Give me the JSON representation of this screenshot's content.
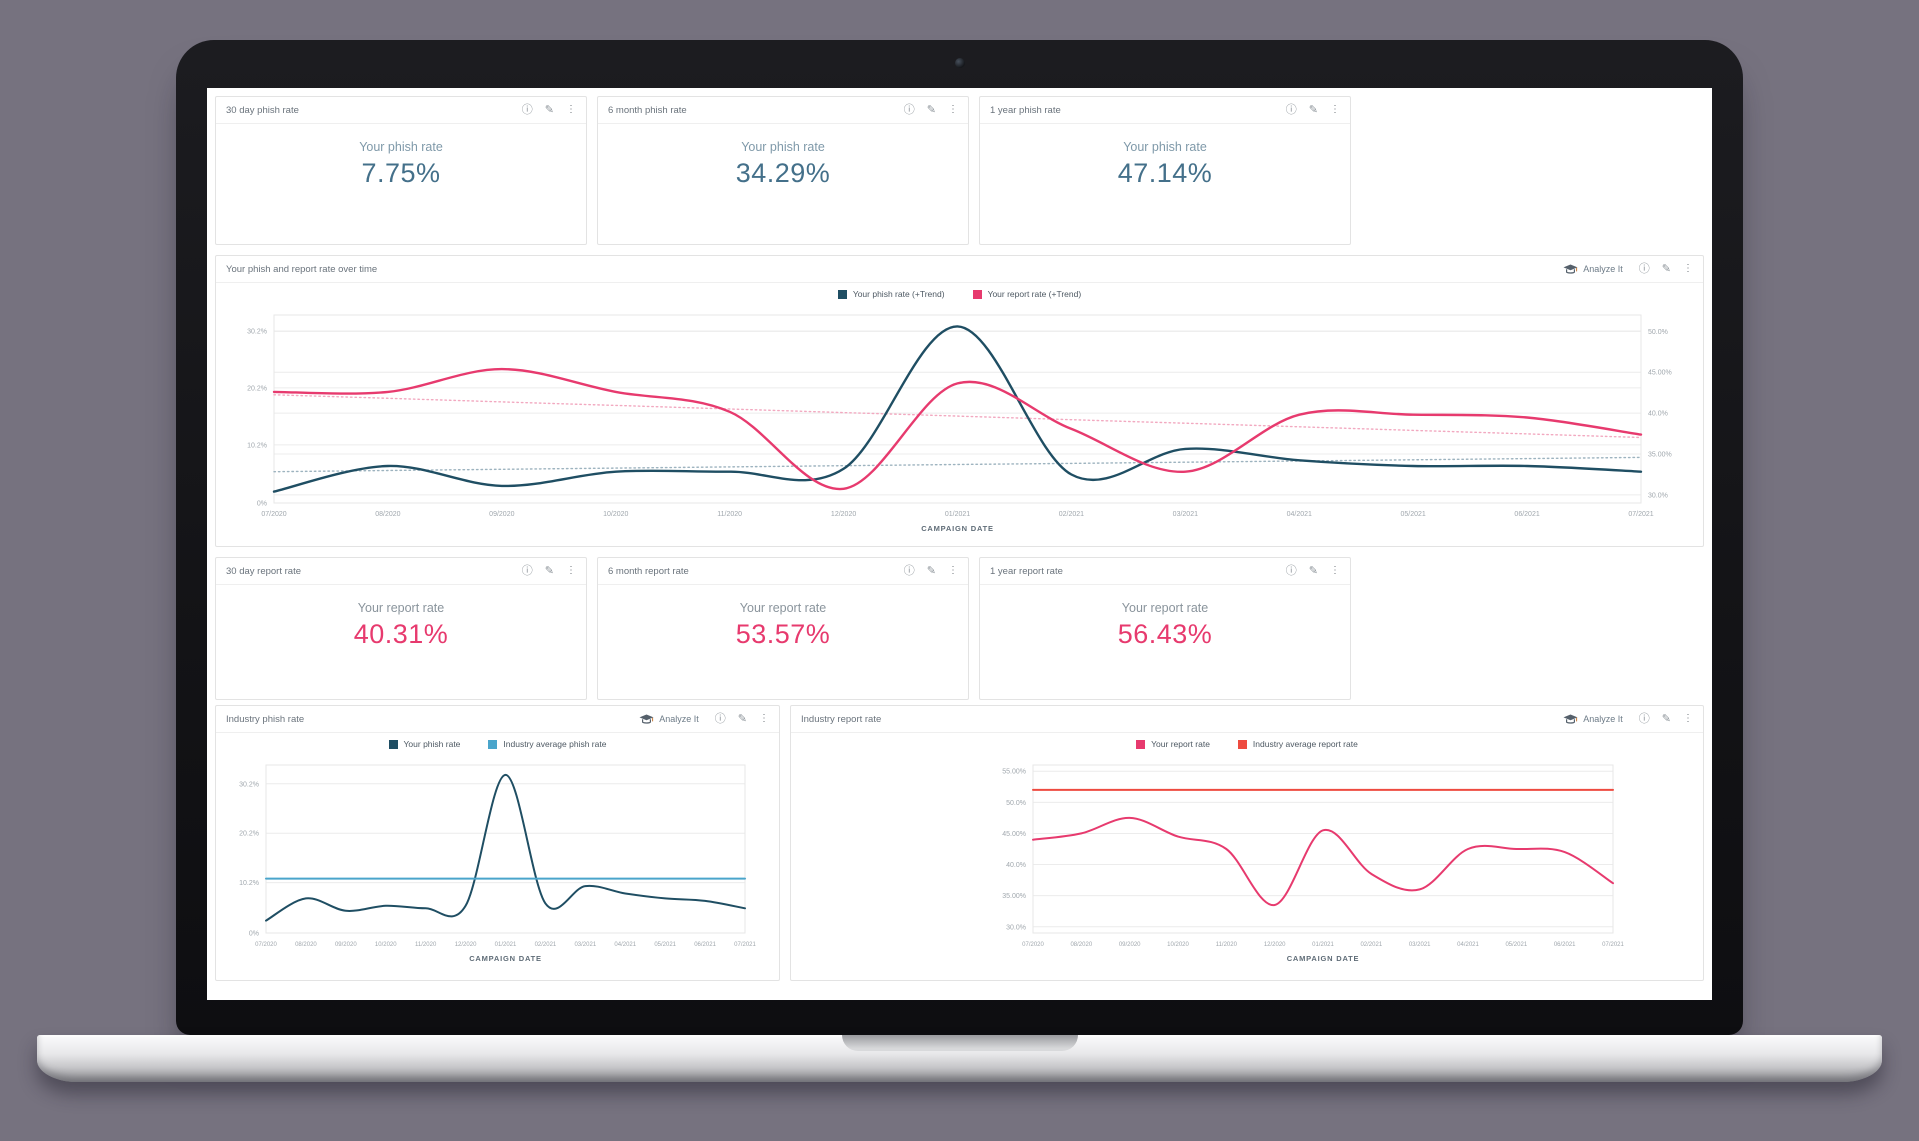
{
  "theme": {
    "phish_line": "#1f4e63",
    "report_line": "#e73a6e",
    "industry_phish_line": "#4aa5cb",
    "industry_report_line": "#ee4b40",
    "phish_value_color": "#44708a",
    "phish_label_color": "#7f99a9",
    "report_value_color": "#e73a6e",
    "report_label_color": "#8a949c"
  },
  "icons": {
    "info": "ⓘ",
    "edit": "✎",
    "menu": "⋮"
  },
  "toolbar": {
    "analyze_label": "Analyze It"
  },
  "stat_cards": [
    {
      "title": "30 day phish rate",
      "label": "Your phish rate",
      "value": "7.75%"
    },
    {
      "title": "6 month phish rate",
      "label": "Your phish rate",
      "value": "34.29%"
    },
    {
      "title": "1 year phish rate",
      "label": "Your phish rate",
      "value": "47.14%"
    },
    {
      "title": "30 day report rate",
      "label": "Your report rate",
      "value": "40.31%"
    },
    {
      "title": "6 month report rate",
      "label": "Your report rate",
      "value": "53.57%"
    },
    {
      "title": "1 year report rate",
      "label": "Your report rate",
      "value": "56.43%"
    }
  ],
  "chart_data": [
    {
      "type": "line",
      "title": "Your phish and report rate over time",
      "xlabel": "CAMPAIGN DATE",
      "x": [
        "07/2020",
        "08/2020",
        "09/2020",
        "10/2020",
        "11/2020",
        "12/2020",
        "01/2021",
        "02/2021",
        "03/2021",
        "04/2021",
        "05/2021",
        "06/2021",
        "07/2021"
      ],
      "left_axis": {
        "range": [
          0,
          33
        ],
        "ticks": [
          {
            "v": 0,
            "label": "0%"
          },
          {
            "v": 10.2,
            "label": "10.2%"
          },
          {
            "v": 20.2,
            "label": "20.2%"
          },
          {
            "v": 30.2,
            "label": "30.2%"
          }
        ]
      },
      "right_axis": {
        "range": [
          29,
          52
        ],
        "ticks": [
          {
            "v": 30,
            "label": "30.0%"
          },
          {
            "v": 35,
            "label": "35.00%"
          },
          {
            "v": 40,
            "label": "40.0%"
          },
          {
            "v": 45,
            "label": "45.00%"
          },
          {
            "v": 50,
            "label": "50.0%"
          }
        ]
      },
      "series": [
        {
          "name": "Your phish rate (+Trend)",
          "color": "#1f4e63",
          "values": [
            2,
            6.5,
            3,
            5.5,
            5.5,
            6,
            31,
            5,
            9.5,
            7.5,
            6.5,
            6.5,
            5.5
          ]
        },
        {
          "name": "Your report rate (+Trend)",
          "color": "#e73a6e",
          "values": [
            19.5,
            19.5,
            23.5,
            19.5,
            16,
            2.5,
            21,
            13,
            5.5,
            15.5,
            15.5,
            15,
            12
          ]
        },
        {
          "name": "Your phish rate trend",
          "color": "#9db3bf",
          "dashed": true,
          "trend": [
            5.5,
            8
          ]
        },
        {
          "name": "Your report rate trend",
          "color": "#f2a9c0",
          "dashed": true,
          "trend": [
            19,
            11.5
          ]
        }
      ]
    },
    {
      "type": "line",
      "title": "Industry phish rate",
      "xlabel": "CAMPAIGN DATE",
      "x": [
        "07/2020",
        "08/2020",
        "09/2020",
        "10/2020",
        "11/2020",
        "12/2020",
        "01/2021",
        "02/2021",
        "03/2021",
        "04/2021",
        "05/2021",
        "06/2021",
        "07/2021"
      ],
      "left_axis": {
        "range": [
          0,
          34
        ],
        "ticks": [
          {
            "v": 0,
            "label": "0%"
          },
          {
            "v": 10.2,
            "label": "10.2%"
          },
          {
            "v": 20.2,
            "label": "20.2%"
          },
          {
            "v": 30.2,
            "label": "30.2%"
          }
        ]
      },
      "series": [
        {
          "name": "Your phish rate",
          "color": "#1f4e63",
          "values": [
            2.5,
            7,
            4.5,
            5.5,
            5,
            5.5,
            32,
            6,
            9.5,
            8,
            7,
            6.5,
            5
          ]
        },
        {
          "name": "Industry average phish rate",
          "color": "#4aa5cb",
          "values": [
            11,
            11,
            11,
            11,
            11,
            11,
            11,
            11,
            11,
            11,
            11,
            11,
            11
          ]
        }
      ]
    },
    {
      "type": "line",
      "title": "Industry report rate",
      "xlabel": "CAMPAIGN DATE",
      "x": [
        "07/2020",
        "08/2020",
        "09/2020",
        "10/2020",
        "11/2020",
        "12/2020",
        "01/2021",
        "02/2021",
        "03/2021",
        "04/2021",
        "05/2021",
        "06/2021",
        "07/2021"
      ],
      "left_axis": {
        "range": [
          29,
          56
        ],
        "ticks": [
          {
            "v": 30,
            "label": "30.0%"
          },
          {
            "v": 35,
            "label": "35.00%"
          },
          {
            "v": 40,
            "label": "40.0%"
          },
          {
            "v": 45,
            "label": "45.00%"
          },
          {
            "v": 50,
            "label": "50.0%"
          },
          {
            "v": 55,
            "label": "55.00%"
          }
        ]
      },
      "series": [
        {
          "name": "Your report rate",
          "color": "#e73a6e",
          "values": [
            44,
            45,
            47.5,
            44.5,
            42.5,
            33.5,
            45.5,
            38.5,
            36,
            42.5,
            42.5,
            42,
            37
          ]
        },
        {
          "name": "Industry average report rate",
          "color": "#ee4b40",
          "values": [
            52,
            52,
            52,
            52,
            52,
            52,
            52,
            52,
            52,
            52,
            52,
            52,
            52
          ]
        }
      ]
    }
  ]
}
